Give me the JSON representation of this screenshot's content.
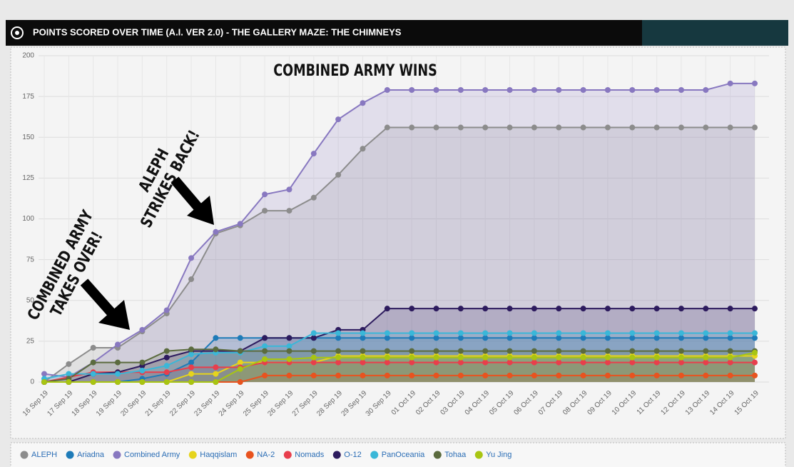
{
  "chart_data": {
    "type": "area",
    "title": "POINTS SCORED OVER TIME (A.I. VER 2.0) - THE GALLERY MAZE: THE CHIMNEYS",
    "annotations": [
      [
        "COMBINED ARMY WINS"
      ],
      [
        "ALEPH",
        "STRIKES BACK!"
      ],
      [
        "COMBINED ARMY",
        "TAKES OVER!"
      ]
    ],
    "categories": [
      "16 Sep 19",
      "17 Sep 19",
      "18 Sep 19",
      "19 Sep 19",
      "20 Sep 19",
      "21 Sep 19",
      "22 Sep 19",
      "23 Sep 19",
      "24 Sep 19",
      "25 Sep 19",
      "26 Sep 19",
      "27 Sep 19",
      "28 Sep 19",
      "29 Sep 19",
      "30 Sep 19",
      "01 Oct 19",
      "02 Oct 19",
      "03 Oct 19",
      "04 Oct 19",
      "05 Oct 19",
      "06 Oct 19",
      "07 Oct 19",
      "08 Oct 19",
      "09 Oct 19",
      "10 Oct 19",
      "11 Oct 19",
      "12 Oct 19",
      "13 Oct 19",
      "14 Oct 19",
      "15 Oct 19"
    ],
    "series": [
      {
        "name": "ALEPH",
        "color": "#8c8c8c",
        "values": [
          0,
          11,
          21,
          21,
          31,
          42,
          63,
          91,
          96,
          105,
          105,
          113,
          127,
          143,
          156,
          156,
          156,
          156,
          156,
          156,
          156,
          156,
          156,
          156,
          156,
          156,
          156,
          156,
          156,
          156
        ]
      },
      {
        "name": "Ariadna",
        "color": "#1e7bb8",
        "values": [
          0,
          0,
          0,
          0,
          2,
          5,
          12,
          27,
          27,
          27,
          27,
          27,
          27,
          27,
          27,
          27,
          27,
          27,
          27,
          27,
          27,
          27,
          27,
          27,
          27,
          27,
          27,
          27,
          27,
          27
        ]
      },
      {
        "name": "Combined Army",
        "color": "#8878c0",
        "values": [
          5,
          3,
          12,
          23,
          32,
          44,
          76,
          92,
          97,
          115,
          118,
          140,
          161,
          171,
          179,
          179,
          179,
          179,
          179,
          179,
          179,
          179,
          179,
          179,
          179,
          179,
          179,
          179,
          183,
          183
        ]
      },
      {
        "name": "Haqqislam",
        "color": "#e6d41c",
        "values": [
          0,
          0,
          0,
          0,
          0,
          0,
          5,
          5,
          12,
          12,
          12,
          12,
          16,
          16,
          16,
          16,
          16,
          16,
          16,
          16,
          16,
          16,
          16,
          16,
          16,
          16,
          16,
          16,
          16,
          16
        ]
      },
      {
        "name": "NA-2",
        "color": "#e8531f",
        "values": [
          0,
          0,
          0,
          0,
          0,
          0,
          0,
          0,
          0,
          4,
          4,
          4,
          4,
          4,
          4,
          4,
          4,
          4,
          4,
          4,
          4,
          4,
          4,
          4,
          4,
          4,
          4,
          4,
          4,
          4
        ]
      },
      {
        "name": "Nomads",
        "color": "#e83e4c",
        "values": [
          0,
          3,
          6,
          6,
          6,
          6,
          9,
          9,
          9,
          12,
          12,
          12,
          12,
          12,
          12,
          12,
          12,
          12,
          12,
          12,
          12,
          12,
          12,
          12,
          12,
          12,
          12,
          12,
          12,
          12
        ]
      },
      {
        "name": "O-12",
        "color": "#2d1b5e",
        "values": [
          0,
          0,
          5,
          6,
          10,
          15,
          19,
          19,
          19,
          27,
          27,
          27,
          32,
          32,
          45,
          45,
          45,
          45,
          45,
          45,
          45,
          45,
          45,
          45,
          45,
          45,
          45,
          45,
          45,
          45
        ]
      },
      {
        "name": "PanOceania",
        "color": "#3ab7d8",
        "values": [
          2,
          5,
          5,
          5,
          7,
          10,
          17,
          18,
          18,
          22,
          22,
          30,
          30,
          30,
          30,
          30,
          30,
          30,
          30,
          30,
          30,
          30,
          30,
          30,
          30,
          30,
          30,
          30,
          30,
          30
        ]
      },
      {
        "name": "Tohaa",
        "color": "#5b6b3e",
        "values": [
          0,
          2,
          12,
          12,
          12,
          19,
          20,
          20,
          19,
          19,
          19,
          19,
          19,
          19,
          19,
          19,
          19,
          19,
          19,
          19,
          19,
          19,
          19,
          19,
          19,
          19,
          19,
          19,
          19,
          19
        ]
      },
      {
        "name": "Yu Jing",
        "color": "#a8c512",
        "values": [
          0,
          0,
          0,
          0,
          0,
          0,
          0,
          0,
          8,
          14,
          14,
          15,
          15,
          15,
          15,
          15,
          15,
          15,
          15,
          15,
          15,
          15,
          15,
          15,
          15,
          15,
          15,
          15,
          15,
          18
        ]
      }
    ],
    "ylim": [
      0,
      200
    ],
    "yticks": [
      0,
      25,
      50,
      75,
      100,
      125,
      150,
      175,
      200
    ],
    "grid": true,
    "legend": "bottom"
  }
}
